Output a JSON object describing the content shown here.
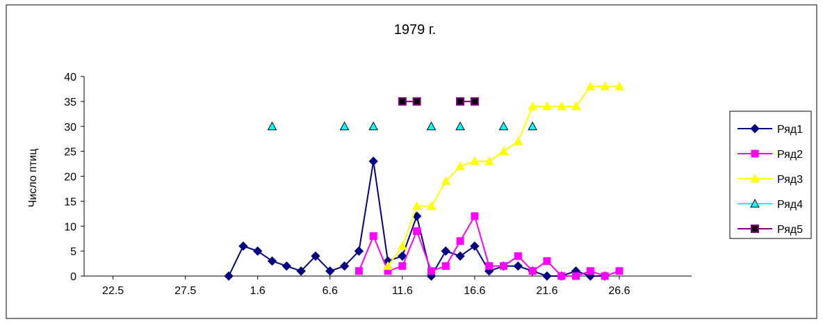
{
  "chart_data": {
    "type": "line",
    "title": "1979 г.",
    "xlabel": "",
    "ylabel": "Число птиц",
    "x_tick_labels": [
      "22.5",
      "27.5",
      "1.6",
      "6.6",
      "11.6",
      "16.6",
      "21.6",
      "26.6"
    ],
    "x_tick_day_index": [
      0,
      5,
      10,
      15,
      20,
      25,
      30,
      35
    ],
    "xlim": [
      -2,
      40
    ],
    "ylim": [
      0,
      40
    ],
    "y_ticks": [
      0,
      5,
      10,
      15,
      20,
      25,
      30,
      35,
      40
    ],
    "grid": false,
    "legend_position": "right",
    "series": [
      {
        "name": "Ряд1",
        "color": "#000080",
        "marker": "diamond",
        "points": [
          [
            8,
            0
          ],
          [
            9,
            6
          ],
          [
            10,
            5
          ],
          [
            11,
            3
          ],
          [
            12,
            2
          ],
          [
            13,
            1
          ],
          [
            14,
            4
          ],
          [
            15,
            1
          ],
          [
            16,
            2
          ],
          [
            17,
            5
          ],
          [
            18,
            23
          ],
          [
            19,
            3
          ],
          [
            20,
            4
          ],
          [
            21,
            12
          ],
          [
            22,
            0
          ],
          [
            23,
            5
          ],
          [
            24,
            4
          ],
          [
            25,
            6
          ],
          [
            26,
            1
          ],
          [
            27,
            2
          ],
          [
            28,
            2
          ],
          [
            29,
            1
          ],
          [
            30,
            0
          ],
          [
            31,
            0
          ],
          [
            32,
            1
          ],
          [
            33,
            0
          ],
          [
            34,
            0
          ]
        ]
      },
      {
        "name": "Ряд2",
        "color": "#FF00FF",
        "marker": "square",
        "points": [
          [
            17,
            1
          ],
          [
            18,
            8
          ],
          [
            19,
            1
          ],
          [
            20,
            2
          ],
          [
            21,
            9
          ],
          [
            22,
            1
          ],
          [
            23,
            2
          ],
          [
            24,
            7
          ],
          [
            25,
            12
          ],
          [
            26,
            2
          ],
          [
            27,
            2
          ],
          [
            28,
            4
          ],
          [
            29,
            1
          ],
          [
            30,
            3
          ],
          [
            31,
            0
          ],
          [
            32,
            0
          ],
          [
            33,
            1
          ],
          [
            34,
            0
          ],
          [
            35,
            1
          ]
        ]
      },
      {
        "name": "Ряд3",
        "color": "#FFFF00",
        "marker": "triangle",
        "points": [
          [
            19,
            2
          ],
          [
            20,
            6
          ],
          [
            21,
            14
          ],
          [
            22,
            14
          ],
          [
            23,
            19
          ],
          [
            24,
            22
          ],
          [
            25,
            23
          ],
          [
            26,
            23
          ],
          [
            27,
            25
          ],
          [
            28,
            27
          ],
          [
            29,
            34
          ],
          [
            30,
            34
          ],
          [
            31,
            34
          ],
          [
            32,
            34
          ],
          [
            33,
            38
          ],
          [
            34,
            38
          ],
          [
            35,
            38
          ]
        ]
      },
      {
        "name": "Ряд4",
        "color": "#00FFFF",
        "marker": "triangle",
        "markers_only": true,
        "points": [
          [
            11,
            30
          ],
          [
            16,
            30
          ],
          [
            18,
            30
          ],
          [
            22,
            30
          ],
          [
            24,
            30
          ],
          [
            27,
            30
          ],
          [
            29,
            30
          ]
        ]
      },
      {
        "name": "Ряд5",
        "color": "#800080",
        "marker": "square-dark",
        "segments": [
          [
            [
              20,
              35
            ],
            [
              21,
              35
            ]
          ],
          [
            [
              24,
              35
            ],
            [
              25,
              35
            ]
          ]
        ]
      }
    ]
  }
}
